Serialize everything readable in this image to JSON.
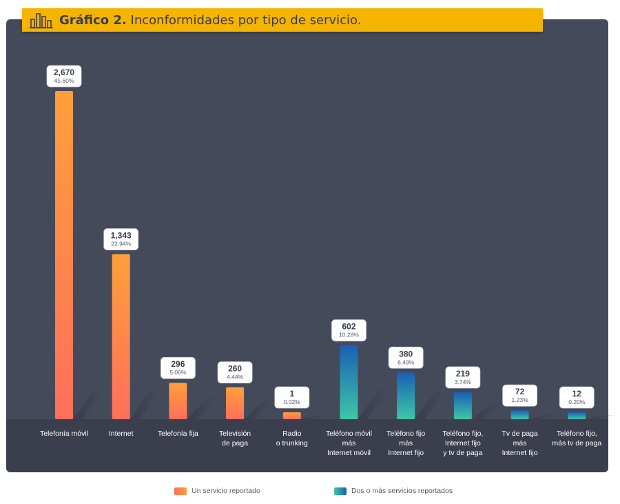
{
  "header": {
    "title_bold": "Gráfico 2.",
    "title_rest": "Inconformidades por tipo de servicio."
  },
  "chart_data": {
    "type": "bar",
    "title": "Gráfico 2. Inconformidades por tipo de servicio.",
    "xlabel": "",
    "ylabel": "",
    "ylim": [
      0,
      2670
    ],
    "grid": false,
    "legend_position": "bottom",
    "categories": [
      "Telefonía móvil",
      "Internet",
      "Telefonía fija",
      "Televisión\nde paga",
      "Radio\no trunking",
      "Teléfono móvil\nmás\nInternet móvil",
      "Teléfono fijo\nmás\nInternet fijo",
      "Teléfono fijo,\nInternet fijo\ny tv de paga",
      "Tv de paga\nmás\nInternet fijo",
      "Teléfono fijo,\nmás tv de paga"
    ],
    "values": [
      2670,
      1343,
      296,
      260,
      1,
      602,
      380,
      219,
      72,
      12
    ],
    "value_labels": [
      "2,670",
      "1,343",
      "296",
      "260",
      "1",
      "602",
      "380",
      "219",
      "72",
      "12"
    ],
    "percent_labels": [
      "45.60%",
      "22.94%",
      "5.06%",
      "4.44%",
      "0.02%",
      "10.28%",
      "6.49%",
      "3.74%",
      "1.23%",
      "0.20%"
    ],
    "series_group": [
      0,
      0,
      0,
      0,
      0,
      1,
      1,
      1,
      1,
      1
    ],
    "series": [
      {
        "name": "Un servicio reportado",
        "colors": [
          "#ff6f5c",
          "#ff9f3a"
        ]
      },
      {
        "name": "Dos o más servicios reportados",
        "colors": [
          "#3ec7a8",
          "#1b5fb3"
        ]
      }
    ]
  },
  "legend": {
    "items": [
      "Un servicio reportado",
      "Dos o más servicios reportados"
    ]
  }
}
